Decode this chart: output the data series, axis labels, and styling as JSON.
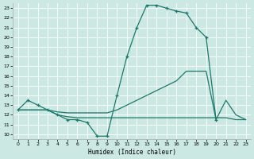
{
  "xlabel": "Humidex (Indice chaleur)",
  "bg_color": "#cbe8e2",
  "line_color": "#1a7a6e",
  "xlim": [
    -0.5,
    23.5
  ],
  "ylim": [
    9.5,
    23.5
  ],
  "xticks": [
    0,
    1,
    2,
    3,
    4,
    5,
    6,
    7,
    8,
    9,
    10,
    11,
    12,
    13,
    14,
    15,
    16,
    17,
    18,
    19,
    20,
    21,
    22,
    23
  ],
  "yticks": [
    10,
    11,
    12,
    13,
    14,
    15,
    16,
    17,
    18,
    19,
    20,
    21,
    22,
    23
  ],
  "line1_x": [
    0,
    1,
    2,
    3,
    4,
    5,
    6,
    7,
    8,
    9,
    10,
    11,
    12,
    13,
    14,
    15,
    16,
    17,
    18,
    19,
    20
  ],
  "line1_y": [
    12.5,
    13.5,
    13.0,
    12.5,
    12.0,
    11.5,
    11.5,
    11.2,
    9.8,
    9.8,
    14.0,
    18.0,
    21.0,
    23.3,
    23.3,
    23.0,
    22.7,
    22.5,
    21.0,
    20.0,
    11.5
  ],
  "line2_x": [
    0,
    1,
    2,
    3,
    4,
    5,
    6,
    7,
    8,
    9,
    10,
    11,
    12,
    13,
    14,
    15,
    16,
    17,
    18,
    19,
    20,
    21,
    22,
    23
  ],
  "line2_y": [
    12.5,
    12.5,
    12.5,
    12.5,
    12.0,
    11.8,
    11.7,
    11.7,
    11.7,
    11.7,
    11.7,
    11.7,
    11.7,
    11.7,
    11.7,
    11.7,
    11.7,
    11.7,
    11.7,
    11.7,
    11.7,
    11.7,
    11.5,
    11.5
  ],
  "line3_x": [
    0,
    1,
    2,
    3,
    4,
    5,
    6,
    7,
    8,
    9,
    10,
    11,
    12,
    13,
    14,
    15,
    16,
    17,
    18,
    19,
    20,
    21,
    22,
    23
  ],
  "line3_y": [
    12.5,
    12.5,
    12.5,
    12.5,
    12.3,
    12.2,
    12.2,
    12.2,
    12.2,
    12.2,
    12.5,
    13.0,
    13.5,
    14.0,
    14.5,
    15.0,
    15.5,
    16.5,
    16.5,
    16.5,
    11.5,
    13.5,
    12.0,
    11.5
  ]
}
